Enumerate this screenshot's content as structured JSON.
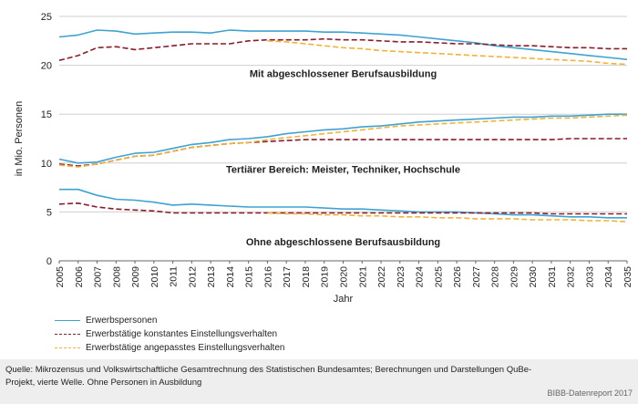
{
  "chart_data": {
    "type": "line",
    "xlabel": "Jahr",
    "ylabel": "in Mio. Personen",
    "ylim": [
      0,
      25
    ],
    "yticks": [
      0,
      5,
      10,
      15,
      20,
      25
    ],
    "x": [
      2005,
      2006,
      2007,
      2008,
      2009,
      2010,
      2011,
      2012,
      2013,
      2014,
      2015,
      2016,
      2017,
      2018,
      2019,
      2020,
      2021,
      2022,
      2023,
      2024,
      2025,
      2026,
      2027,
      2028,
      2029,
      2030,
      2031,
      2032,
      2033,
      2034,
      2035
    ],
    "grid": "horizontal",
    "legend_position": "bottom-left",
    "series": [
      {
        "name": "Erwerbspersonen",
        "group": "mit",
        "style": "solid",
        "color": "#3fa3d1",
        "values": [
          22.9,
          23.1,
          23.6,
          23.5,
          23.2,
          23.3,
          23.4,
          23.4,
          23.3,
          23.6,
          23.5,
          23.5,
          23.5,
          23.5,
          23.4,
          23.4,
          23.3,
          23.2,
          23.1,
          22.9,
          22.7,
          22.5,
          22.3,
          22.0,
          21.8,
          21.6,
          21.4,
          21.2,
          21.0,
          20.8,
          20.6
        ]
      },
      {
        "name": "Erwerbstätige konstantes Einstellungsverhalten",
        "group": "mit",
        "style": "dash",
        "color": "#8b1a2b",
        "values": [
          20.5,
          21.0,
          21.8,
          21.9,
          21.6,
          21.8,
          22.0,
          22.2,
          22.2,
          22.2,
          22.5,
          22.6,
          22.6,
          22.6,
          22.7,
          22.6,
          22.6,
          22.5,
          22.4,
          22.4,
          22.3,
          22.2,
          22.2,
          22.1,
          22.0,
          22.0,
          21.9,
          21.8,
          21.8,
          21.7,
          21.7
        ]
      },
      {
        "name": "Erwerbstätige angepasstes Einstellungsverhalten",
        "group": "mit",
        "style": "dash",
        "color": "#f2b233",
        "values": [
          null,
          null,
          null,
          null,
          null,
          null,
          null,
          null,
          null,
          null,
          null,
          22.5,
          22.4,
          22.2,
          22.0,
          21.8,
          21.7,
          21.5,
          21.4,
          21.3,
          21.2,
          21.1,
          21.0,
          20.9,
          20.8,
          20.7,
          20.6,
          20.5,
          20.4,
          20.2,
          20.1
        ]
      },
      {
        "name": "Erwerbspersonen",
        "group": "tertiaer",
        "style": "solid",
        "color": "#3fa3d1",
        "values": [
          10.4,
          10.0,
          10.1,
          10.6,
          11.0,
          11.1,
          11.5,
          11.9,
          12.1,
          12.4,
          12.5,
          12.7,
          13.0,
          13.2,
          13.4,
          13.5,
          13.7,
          13.8,
          14.0,
          14.2,
          14.3,
          14.4,
          14.5,
          14.6,
          14.7,
          14.7,
          14.8,
          14.8,
          14.9,
          15.0,
          15.0
        ]
      },
      {
        "name": "Erwerbstätige konstantes Einstellungsverhalten",
        "group": "tertiaer",
        "style": "dash",
        "color": "#8b1a2b",
        "values": [
          9.9,
          9.7,
          9.9,
          10.3,
          10.7,
          10.8,
          11.2,
          11.6,
          11.8,
          12.0,
          12.1,
          12.2,
          12.3,
          12.4,
          12.4,
          12.4,
          12.4,
          12.4,
          12.4,
          12.4,
          12.4,
          12.4,
          12.4,
          12.4,
          12.4,
          12.4,
          12.4,
          12.5,
          12.5,
          12.5,
          12.5
        ]
      },
      {
        "name": "Erwerbstätige angepasstes Einstellungsverhalten",
        "group": "tertiaer",
        "style": "dash",
        "color": "#f2b233",
        "values": [
          9.8,
          9.6,
          9.9,
          10.3,
          10.7,
          10.8,
          11.2,
          11.6,
          11.8,
          12.0,
          12.1,
          12.4,
          12.6,
          12.8,
          13.0,
          13.2,
          13.4,
          13.6,
          13.8,
          13.9,
          14.0,
          14.1,
          14.2,
          14.3,
          14.4,
          14.5,
          14.6,
          14.6,
          14.7,
          14.8,
          14.9
        ]
      },
      {
        "name": "Erwerbspersonen",
        "group": "ohne",
        "style": "solid",
        "color": "#3fa3d1",
        "values": [
          7.3,
          7.3,
          6.7,
          6.3,
          6.2,
          6.0,
          5.7,
          5.8,
          5.7,
          5.6,
          5.5,
          5.5,
          5.5,
          5.5,
          5.4,
          5.3,
          5.3,
          5.2,
          5.1,
          5.0,
          5.0,
          5.0,
          4.9,
          4.8,
          4.7,
          4.7,
          4.6,
          4.5,
          4.5,
          4.4,
          4.4
        ]
      },
      {
        "name": "Erwerbstätige konstantes Einstellungsverhalten",
        "group": "ohne",
        "style": "dash",
        "color": "#8b1a2b",
        "values": [
          5.8,
          5.9,
          5.5,
          5.3,
          5.2,
          5.1,
          4.9,
          4.9,
          4.9,
          4.9,
          4.9,
          4.9,
          4.9,
          4.9,
          4.9,
          4.9,
          4.9,
          4.9,
          4.9,
          4.9,
          4.9,
          4.9,
          4.9,
          4.9,
          4.9,
          4.9,
          4.8,
          4.8,
          4.8,
          4.8,
          4.8
        ]
      },
      {
        "name": "Erwerbstätige angepasstes Einstellungsverhalten",
        "group": "ohne",
        "style": "dash",
        "color": "#f2b233",
        "values": [
          null,
          null,
          null,
          null,
          null,
          null,
          null,
          null,
          null,
          null,
          null,
          4.9,
          4.8,
          4.8,
          4.7,
          4.7,
          4.6,
          4.6,
          4.5,
          4.5,
          4.4,
          4.4,
          4.3,
          4.3,
          4.3,
          4.2,
          4.2,
          4.2,
          4.1,
          4.1,
          4.0
        ]
      }
    ],
    "annotations": [
      {
        "text": "Mit abgeschlossener Berufsausbildung",
        "x": 2020,
        "y": 18.8
      },
      {
        "text": "Tertiärer Bereich: Meister, Techniker, Hochschule",
        "x": 2020,
        "y": 9.0
      },
      {
        "text": "Ohne abgeschlossene Berufsausbildung",
        "x": 2020,
        "y": 1.6
      }
    ]
  },
  "legend": [
    {
      "label": "Erwerbspersonen",
      "style": "solid",
      "color": "#3fa3d1"
    },
    {
      "label": "Erwerbstätige konstantes Einstellungsverhalten",
      "style": "dash",
      "color": "#8b1a2b"
    },
    {
      "label": "Erwerbstätige angepasstes Einstellungsverhalten",
      "style": "dash",
      "color": "#f2b233"
    }
  ],
  "footer": {
    "source": "Quelle: Mikrozensus und Volkswirtschaftliche Gesamtrechnung des Statistischen Bundesamtes; Berechnungen und Darstellungen QuBe-Projekt, vierte Welle. Ohne Personen in Ausbildung",
    "credit": "BIBB-Datenreport 2017"
  }
}
